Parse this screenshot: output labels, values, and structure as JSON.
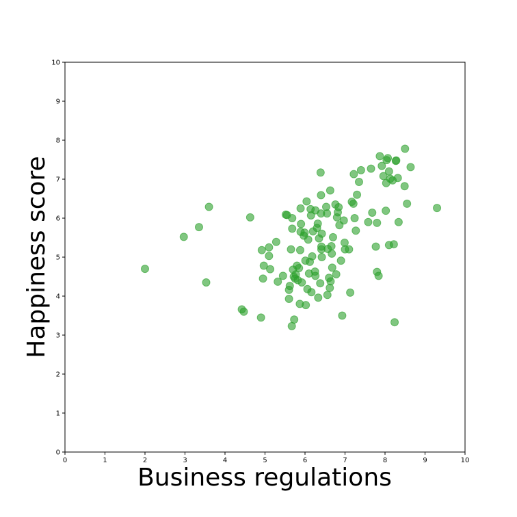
{
  "chart_data": {
    "type": "scatter",
    "title": "",
    "xlabel": "Business regulations",
    "ylabel": "Happiness score",
    "xlim": [
      0,
      10
    ],
    "ylim": [
      0,
      10
    ],
    "xticks": [
      "0",
      "1",
      "2",
      "3",
      "4",
      "5",
      "6",
      "7",
      "8",
      "9",
      "10"
    ],
    "yticks": [
      "0",
      "1",
      "2",
      "3",
      "4",
      "5",
      "6",
      "7",
      "8",
      "9",
      "10"
    ],
    "grid": false,
    "marker_color": "#2ca02c",
    "marker_alpha": 0.6,
    "points": [
      [
        2.0,
        4.7
      ],
      [
        2.97,
        5.52
      ],
      [
        3.35,
        5.77
      ],
      [
        3.53,
        4.35
      ],
      [
        3.6,
        6.29
      ],
      [
        4.42,
        3.66
      ],
      [
        4.47,
        3.6
      ],
      [
        4.63,
        6.02
      ],
      [
        4.9,
        3.45
      ],
      [
        4.92,
        5.18
      ],
      [
        4.95,
        4.45
      ],
      [
        4.97,
        4.78
      ],
      [
        5.1,
        5.25
      ],
      [
        5.1,
        5.03
      ],
      [
        5.13,
        4.69
      ],
      [
        5.28,
        5.39
      ],
      [
        5.32,
        4.37
      ],
      [
        5.45,
        4.52
      ],
      [
        5.52,
        6.09
      ],
      [
        5.55,
        6.08
      ],
      [
        5.6,
        4.16
      ],
      [
        5.6,
        3.93
      ],
      [
        5.62,
        4.26
      ],
      [
        5.65,
        5.2
      ],
      [
        5.67,
        3.23
      ],
      [
        5.68,
        5.73
      ],
      [
        5.68,
        6.0
      ],
      [
        5.7,
        4.68
      ],
      [
        5.72,
        4.5
      ],
      [
        5.73,
        3.4
      ],
      [
        5.75,
        4.45
      ],
      [
        5.77,
        4.56
      ],
      [
        5.8,
        4.78
      ],
      [
        5.82,
        4.41
      ],
      [
        5.85,
        4.72
      ],
      [
        5.87,
        3.8
      ],
      [
        5.88,
        5.18
      ],
      [
        5.89,
        6.25
      ],
      [
        5.89,
        5.65
      ],
      [
        5.9,
        5.85
      ],
      [
        5.92,
        4.35
      ],
      [
        5.97,
        5.55
      ],
      [
        5.99,
        5.63
      ],
      [
        6.01,
        4.91
      ],
      [
        6.02,
        3.77
      ],
      [
        6.04,
        6.43
      ],
      [
        6.06,
        4.18
      ],
      [
        6.08,
        5.45
      ],
      [
        6.1,
        4.58
      ],
      [
        6.12,
        4.88
      ],
      [
        6.14,
        6.23
      ],
      [
        6.15,
        6.07
      ],
      [
        6.16,
        4.1
      ],
      [
        6.18,
        5.02
      ],
      [
        6.2,
        5.66
      ],
      [
        6.25,
        4.63
      ],
      [
        6.26,
        6.2
      ],
      [
        6.26,
        4.52
      ],
      [
        6.3,
        5.75
      ],
      [
        6.32,
        5.86
      ],
      [
        6.33,
        3.96
      ],
      [
        6.35,
        5.48
      ],
      [
        6.38,
        4.33
      ],
      [
        6.39,
        7.17
      ],
      [
        6.4,
        6.59
      ],
      [
        6.4,
        6.12
      ],
      [
        6.41,
        5.2
      ],
      [
        6.41,
        5.27
      ],
      [
        6.42,
        5.0
      ],
      [
        6.42,
        5.6
      ],
      [
        6.53,
        6.29
      ],
      [
        6.55,
        6.12
      ],
      [
        6.56,
        4.03
      ],
      [
        6.57,
        5.21
      ],
      [
        6.6,
        4.47
      ],
      [
        6.62,
        4.21
      ],
      [
        6.63,
        6.71
      ],
      [
        6.64,
        4.38
      ],
      [
        6.66,
        5.28
      ],
      [
        6.67,
        5.09
      ],
      [
        6.68,
        4.73
      ],
      [
        6.7,
        5.51
      ],
      [
        6.76,
        6.35
      ],
      [
        6.78,
        4.56
      ],
      [
        6.8,
        6.02
      ],
      [
        6.82,
        6.15
      ],
      [
        6.84,
        6.28
      ],
      [
        6.86,
        5.82
      ],
      [
        6.9,
        4.91
      ],
      [
        6.93,
        3.5
      ],
      [
        6.97,
        5.94
      ],
      [
        6.99,
        5.37
      ],
      [
        7.0,
        5.2
      ],
      [
        7.1,
        5.2
      ],
      [
        7.13,
        4.09
      ],
      [
        7.17,
        6.42
      ],
      [
        7.21,
        6.37
      ],
      [
        7.22,
        7.13
      ],
      [
        7.24,
        6.0
      ],
      [
        7.27,
        5.68
      ],
      [
        7.3,
        6.6
      ],
      [
        7.35,
        6.93
      ],
      [
        7.4,
        7.23
      ],
      [
        7.58,
        5.9
      ],
      [
        7.65,
        7.27
      ],
      [
        7.68,
        6.14
      ],
      [
        7.77,
        5.27
      ],
      [
        7.8,
        5.88
      ],
      [
        7.8,
        4.62
      ],
      [
        7.84,
        4.52
      ],
      [
        7.87,
        7.59
      ],
      [
        7.92,
        7.34
      ],
      [
        7.96,
        7.08
      ],
      [
        8.02,
        6.19
      ],
      [
        8.03,
        6.9
      ],
      [
        8.04,
        7.49
      ],
      [
        8.07,
        7.54
      ],
      [
        8.1,
        7.2
      ],
      [
        8.1,
        5.31
      ],
      [
        8.13,
        7.01
      ],
      [
        8.19,
        6.97
      ],
      [
        8.22,
        5.33
      ],
      [
        8.24,
        3.33
      ],
      [
        8.27,
        7.47
      ],
      [
        8.28,
        7.48
      ],
      [
        8.32,
        7.03
      ],
      [
        8.34,
        5.9
      ],
      [
        8.49,
        6.82
      ],
      [
        8.5,
        7.78
      ],
      [
        8.55,
        6.37
      ],
      [
        8.64,
        7.31
      ],
      [
        9.3,
        6.26
      ]
    ]
  }
}
